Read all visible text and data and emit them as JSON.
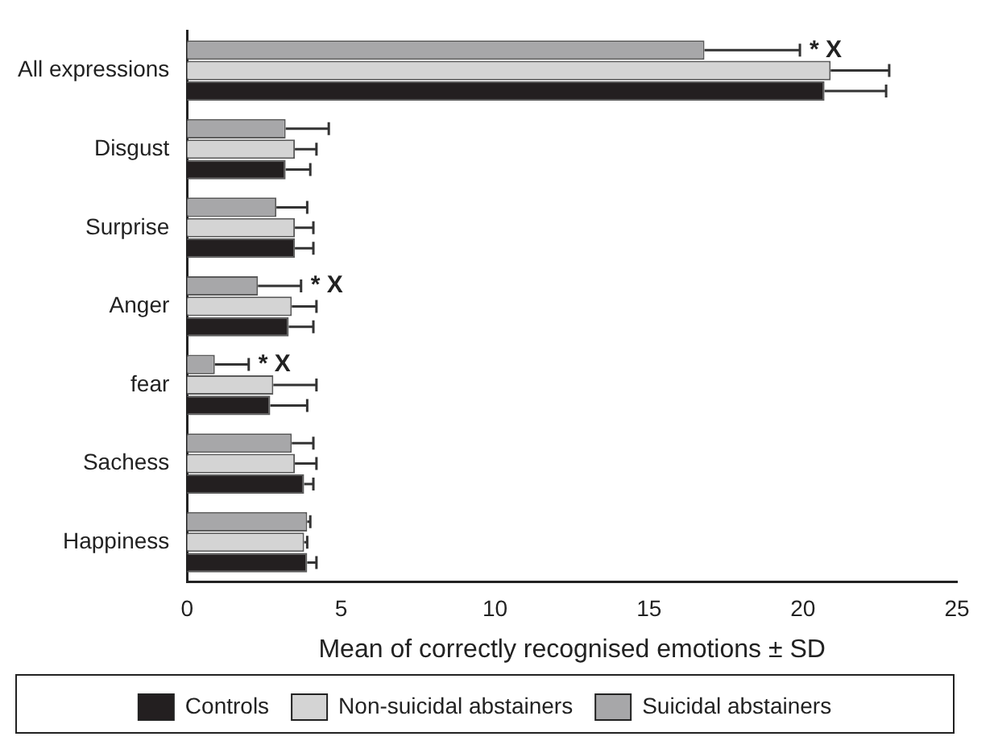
{
  "chart_data": {
    "type": "bar",
    "orientation": "horizontal",
    "xlabel": "Mean of correctly recognised emotions ± SD",
    "categories": [
      "All expressions",
      "Disgust",
      "Surprise",
      "Anger",
      "fear",
      "Sachess",
      "Happiness"
    ],
    "series": [
      {
        "name": "Suicidal abstainers",
        "color": "#a7a7a9",
        "values": [
          16.8,
          3.2,
          2.9,
          2.3,
          0.9,
          3.4,
          3.9
        ],
        "errors": [
          [
            16.8,
            19.9
          ],
          [
            3.2,
            4.6
          ],
          [
            2.9,
            3.9
          ],
          [
            2.3,
            3.7
          ],
          [
            0.9,
            2.0
          ],
          [
            3.4,
            4.1
          ],
          [
            3.9,
            4.0
          ]
        ]
      },
      {
        "name": "Non-suicidal abstainers",
        "color": "#d4d4d4",
        "values": [
          20.9,
          3.5,
          3.5,
          3.4,
          2.8,
          3.5,
          3.8
        ],
        "errors": [
          [
            20.9,
            22.8
          ],
          [
            3.5,
            4.2
          ],
          [
            3.5,
            4.1
          ],
          [
            3.4,
            4.2
          ],
          [
            2.8,
            4.2
          ],
          [
            3.5,
            4.2
          ],
          [
            3.8,
            3.9
          ]
        ]
      },
      {
        "name": "Controls",
        "color": "#231f20",
        "values": [
          20.7,
          3.2,
          3.5,
          3.3,
          2.7,
          3.8,
          3.9
        ],
        "errors": [
          [
            20.7,
            22.7
          ],
          [
            3.2,
            4.0
          ],
          [
            3.5,
            4.1
          ],
          [
            3.3,
            4.1
          ],
          [
            2.7,
            3.9
          ],
          [
            3.8,
            4.1
          ],
          [
            3.9,
            4.2
          ]
        ]
      }
    ],
    "xlim": [
      0,
      25
    ],
    "xticks": [
      0,
      5,
      10,
      15,
      20,
      25
    ],
    "grid": false,
    "legend": "bottom",
    "annotations": [
      {
        "text": "* X",
        "x": 19.9,
        "y": "All expressions"
      },
      {
        "text": "* X",
        "x": 3.7,
        "y": "Anger"
      },
      {
        "text": "* X",
        "x": 2.0,
        "y": "fear"
      }
    ]
  }
}
